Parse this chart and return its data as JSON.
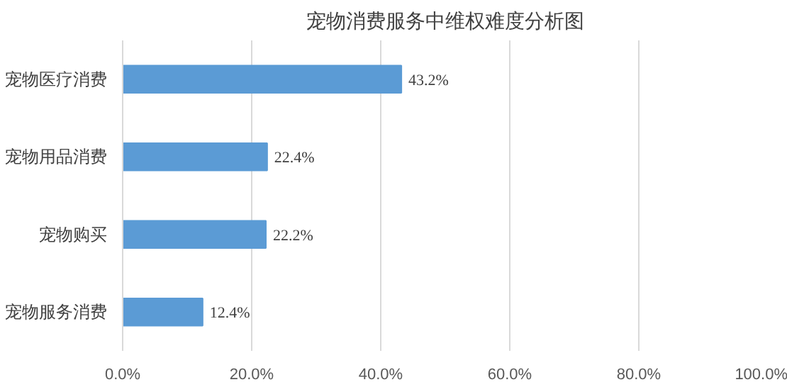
{
  "chart_data": {
    "type": "bar",
    "orientation": "horizontal",
    "title": "宠物消费服务中维权难度分析图",
    "categories": [
      "宠物医疗消费",
      "宠物用品消费",
      "宠物购买",
      "宠物服务消费"
    ],
    "values": [
      43.2,
      22.4,
      22.2,
      12.4
    ],
    "value_labels": [
      "43.2%",
      "22.4%",
      "22.2%",
      "12.4%"
    ],
    "color": "#5b9bd5",
    "xlim": [
      0,
      100
    ],
    "xticks": [
      {
        "value": 0,
        "label": "0.0%"
      },
      {
        "value": 20,
        "label": "20.0%"
      },
      {
        "value": 40,
        "label": "40.0%"
      },
      {
        "value": 60,
        "label": "60.0%"
      },
      {
        "value": 80,
        "label": "80.0%"
      },
      {
        "value": 100,
        "label": "100.0%"
      }
    ],
    "grid": "x"
  }
}
